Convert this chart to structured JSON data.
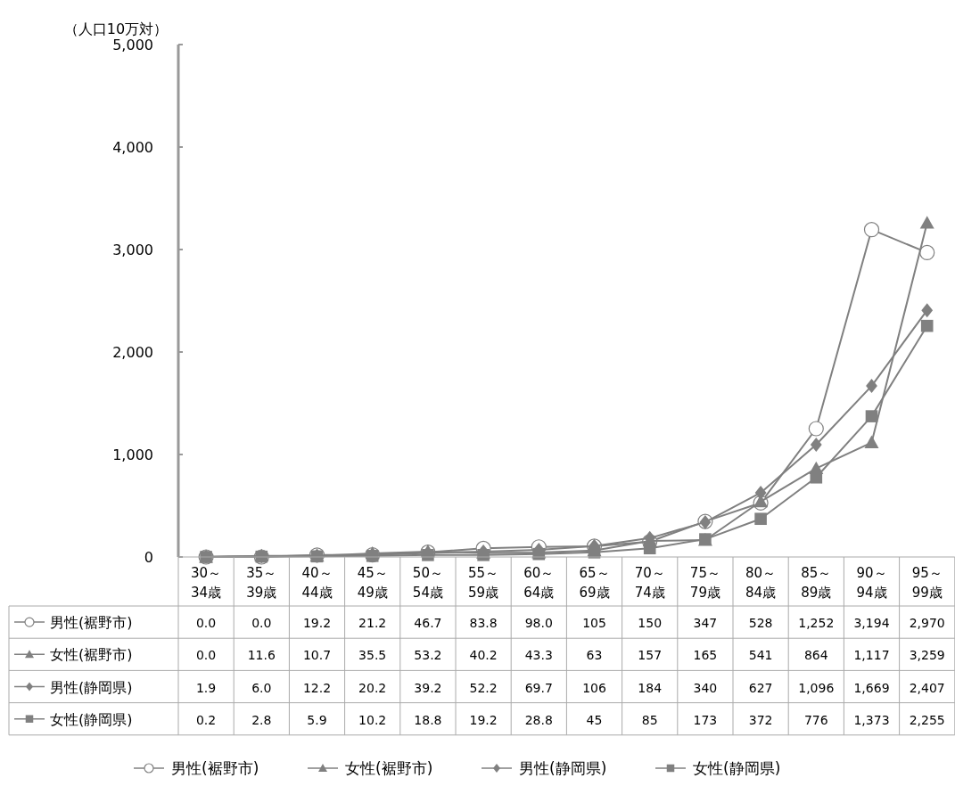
{
  "chart_data": {
    "type": "line",
    "ylabel": "（人口10万対）",
    "categories": [
      "30～34歳",
      "35～39歳",
      "40～44歳",
      "45～49歳",
      "50～54歳",
      "55～59歳",
      "60～64歳",
      "65～69歳",
      "70～74歳",
      "75～79歳",
      "80～84歳",
      "85～89歳",
      "90～94歳",
      "95～99歳"
    ],
    "ylim": [
      0,
      5000
    ],
    "yticks": [
      {
        "value": 0,
        "label": "0"
      },
      {
        "value": 1000,
        "label": "1,000"
      },
      {
        "value": 2000,
        "label": "2,000"
      },
      {
        "value": 3000,
        "label": "3,000"
      },
      {
        "value": 4000,
        "label": "4,000"
      },
      {
        "value": 5000,
        "label": "5,000"
      }
    ],
    "grid": false,
    "legend": "bottom",
    "series": [
      {
        "name": "男性(裾野市)",
        "color": "#808080",
        "marker": "circle",
        "values": [
          0.0,
          0.0,
          19.2,
          21.2,
          46.7,
          83.8,
          98.0,
          105,
          150,
          347,
          528,
          1252,
          3194,
          2970
        ],
        "value_labels": [
          "0.0",
          "0.0",
          "19.2",
          "21.2",
          "46.7",
          "83.8",
          "98.0",
          "105",
          "150",
          "347",
          "528",
          "1,252",
          "3,194",
          "2,970"
        ]
      },
      {
        "name": "女性(裾野市)",
        "color": "#808080",
        "marker": "triangle",
        "values": [
          0.0,
          11.6,
          10.7,
          35.5,
          53.2,
          40.2,
          43.3,
          63,
          157,
          165,
          541,
          864,
          1117,
          3259
        ],
        "value_labels": [
          "0.0",
          "11.6",
          "10.7",
          "35.5",
          "53.2",
          "40.2",
          "43.3",
          "63",
          "157",
          "165",
          "541",
          "864",
          "1,117",
          "3,259"
        ]
      },
      {
        "name": "男性(静岡県)",
        "color": "#808080",
        "marker": "diamond",
        "values": [
          1.9,
          6.0,
          12.2,
          20.2,
          39.2,
          52.2,
          69.7,
          106,
          184,
          340,
          627,
          1096,
          1669,
          2407
        ],
        "value_labels": [
          "1.9",
          "6.0",
          "12.2",
          "20.2",
          "39.2",
          "52.2",
          "69.7",
          "106",
          "184",
          "340",
          "627",
          "1,096",
          "1,669",
          "2,407"
        ]
      },
      {
        "name": "女性(静岡県)",
        "color": "#808080",
        "marker": "square",
        "values": [
          0.2,
          2.8,
          5.9,
          10.2,
          18.8,
          19.2,
          28.8,
          45,
          85,
          173,
          372,
          776,
          1373,
          2255
        ],
        "value_labels": [
          "0.2",
          "2.8",
          "5.9",
          "10.2",
          "18.8",
          "19.2",
          "28.8",
          "45",
          "85",
          "173",
          "372",
          "776",
          "1,373",
          "2,255"
        ]
      }
    ]
  }
}
